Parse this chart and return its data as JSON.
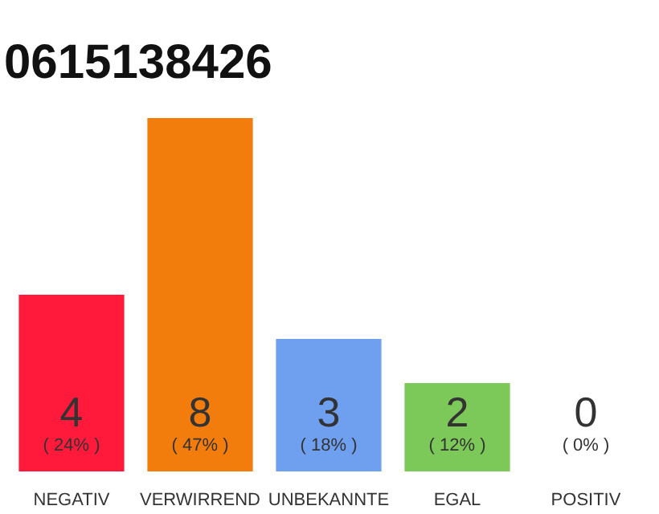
{
  "chart_data": {
    "type": "bar",
    "title": "0615138426",
    "categories": [
      "NEGATIV",
      "VERWIRREND",
      "UNBEKANNTE",
      "EGAL",
      "POSITIV"
    ],
    "values": [
      4,
      8,
      3,
      2,
      0
    ],
    "colors": [
      "#ff1a3c",
      "#f27d0c",
      "#6fa0ef",
      "#7cc95a",
      "#c8c8c8"
    ],
    "value_labels": [
      "4\n( 24% )",
      "8\n( 47% )",
      "3\n( 18% )",
      "2\n( 12% )",
      "0\n( 0% )"
    ],
    "ylim": [
      0,
      8
    ],
    "grid": false,
    "tick_labels": "x"
  }
}
